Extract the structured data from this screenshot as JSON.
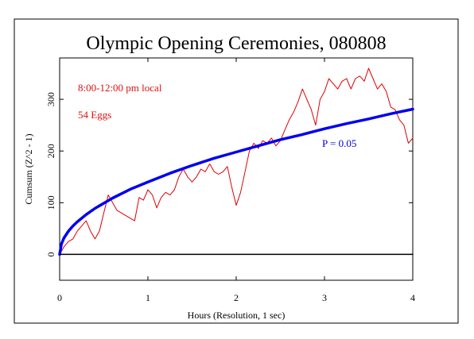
{
  "chart_data": {
    "type": "line",
    "title": "Olympic Opening Ceremonies, 080808",
    "xlabel": "Hours (Resolution, 1 sec)",
    "ylabel": "Cumsum (Z^2 - 1)",
    "xlim": [
      0,
      4
    ],
    "ylim": [
      -50,
      380
    ],
    "x_ticks": [
      0,
      1,
      2,
      3,
      4
    ],
    "y_ticks": [
      0,
      100,
      200,
      300
    ],
    "grid": false,
    "annotations": [
      {
        "text": "8:00-12:00 pm local",
        "color": "#dd1111"
      },
      {
        "text": "54 Eggs",
        "color": "#dd1111"
      },
      {
        "text": "P = 0.05",
        "color": "#0000cc"
      }
    ],
    "series": [
      {
        "color": "#dd0000",
        "x": [
          0,
          0.05,
          0.1,
          0.15,
          0.2,
          0.25,
          0.3,
          0.35,
          0.4,
          0.45,
          0.5,
          0.55,
          0.6,
          0.65,
          0.7,
          0.75,
          0.8,
          0.85,
          0.9,
          0.95,
          1.0,
          1.05,
          1.1,
          1.15,
          1.2,
          1.25,
          1.3,
          1.35,
          1.4,
          1.45,
          1.5,
          1.55,
          1.6,
          1.65,
          1.7,
          1.75,
          1.8,
          1.85,
          1.9,
          1.95,
          2.0,
          2.05,
          2.1,
          2.15,
          2.2,
          2.25,
          2.3,
          2.35,
          2.4,
          2.45,
          2.5,
          2.55,
          2.6,
          2.65,
          2.7,
          2.75,
          2.8,
          2.85,
          2.9,
          2.95,
          3.0,
          3.05,
          3.1,
          3.15,
          3.2,
          3.25,
          3.3,
          3.35,
          3.4,
          3.45,
          3.5,
          3.55,
          3.6,
          3.65,
          3.7,
          3.75,
          3.8,
          3.85,
          3.9,
          3.95,
          4.0
        ],
        "y": [
          0,
          15,
          25,
          30,
          45,
          55,
          65,
          45,
          30,
          45,
          80,
          115,
          100,
          85,
          80,
          75,
          70,
          65,
          110,
          105,
          125,
          115,
          90,
          110,
          120,
          115,
          125,
          150,
          165,
          150,
          140,
          150,
          165,
          160,
          175,
          160,
          155,
          160,
          170,
          130,
          95,
          120,
          160,
          200,
          215,
          205,
          220,
          215,
          225,
          210,
          220,
          240,
          260,
          275,
          295,
          320,
          300,
          280,
          250,
          300,
          315,
          340,
          330,
          320,
          335,
          340,
          320,
          340,
          345,
          335,
          360,
          340,
          320,
          330,
          315,
          285,
          280,
          260,
          250,
          215,
          225
        ]
      },
      {
        "name": "P = 0.05",
        "color": "#0000ee",
        "x": [
          0,
          0.02,
          0.05,
          0.1,
          0.15,
          0.2,
          0.3,
          0.4,
          0.5,
          0.6,
          0.8,
          1.0,
          1.25,
          1.5,
          1.75,
          2.0,
          2.25,
          2.5,
          2.75,
          3.0,
          3.25,
          3.5,
          3.75,
          4.0
        ],
        "y": [
          0,
          20,
          32,
          45,
          55,
          63,
          77,
          89,
          99,
          109,
          126,
          140,
          157,
          172,
          186,
          198,
          210,
          222,
          232,
          243,
          253,
          262,
          272,
          281
        ]
      },
      {
        "color": "#000000",
        "x": [
          0,
          4
        ],
        "y": [
          0,
          0
        ]
      }
    ]
  }
}
